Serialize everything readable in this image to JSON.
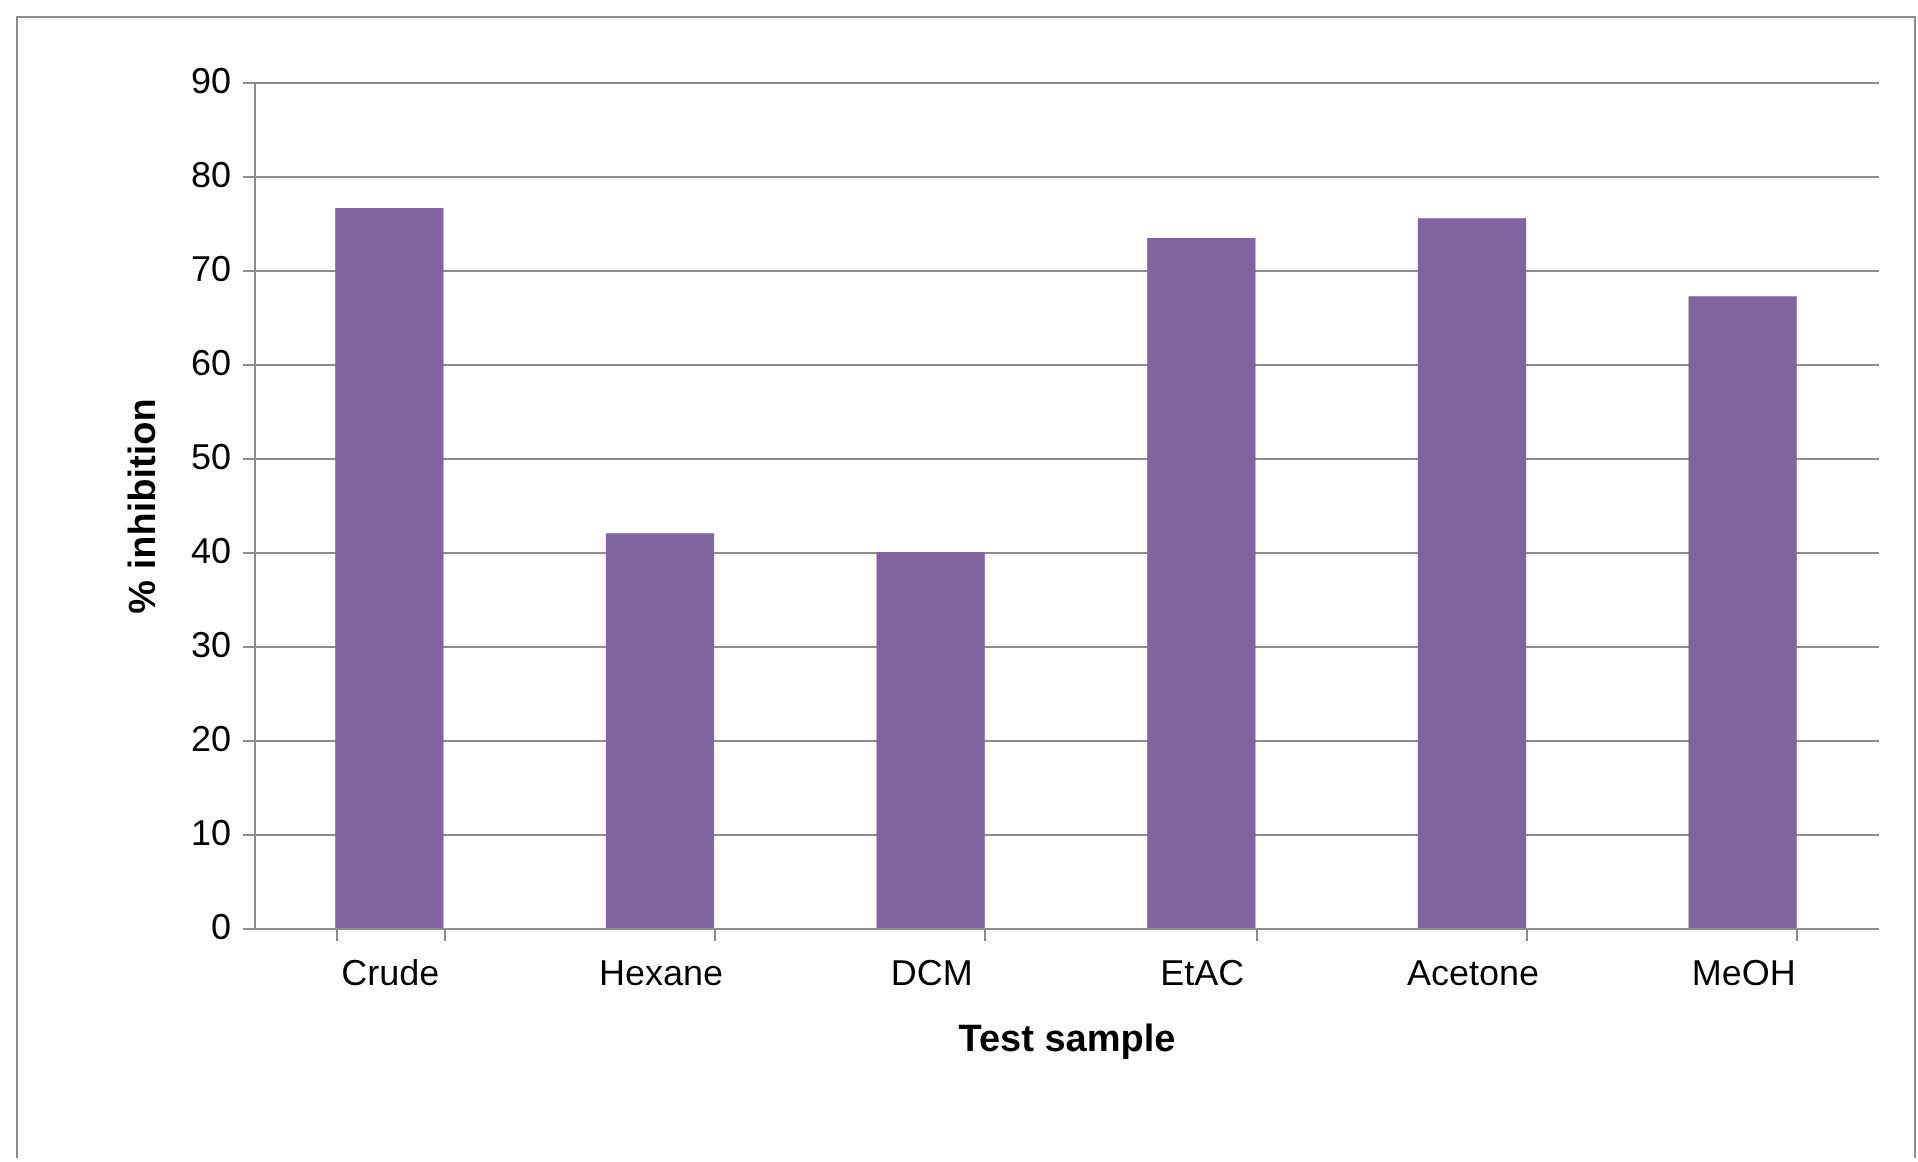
{
  "chart_data": {
    "type": "bar",
    "xlabel": "Test sample",
    "ylabel": "% inhibition",
    "categories": [
      "Crude",
      "Hexane",
      "DCM",
      "EtAC",
      "Acetone",
      "MeOH"
    ],
    "values": [
      76.6,
      42,
      40,
      73.4,
      75.5,
      67.2
    ],
    "color": "#8064a2",
    "ylim": [
      0,
      90
    ],
    "yticks": [
      0,
      10,
      20,
      30,
      40,
      50,
      60,
      70,
      80,
      90
    ],
    "grid": "y"
  }
}
